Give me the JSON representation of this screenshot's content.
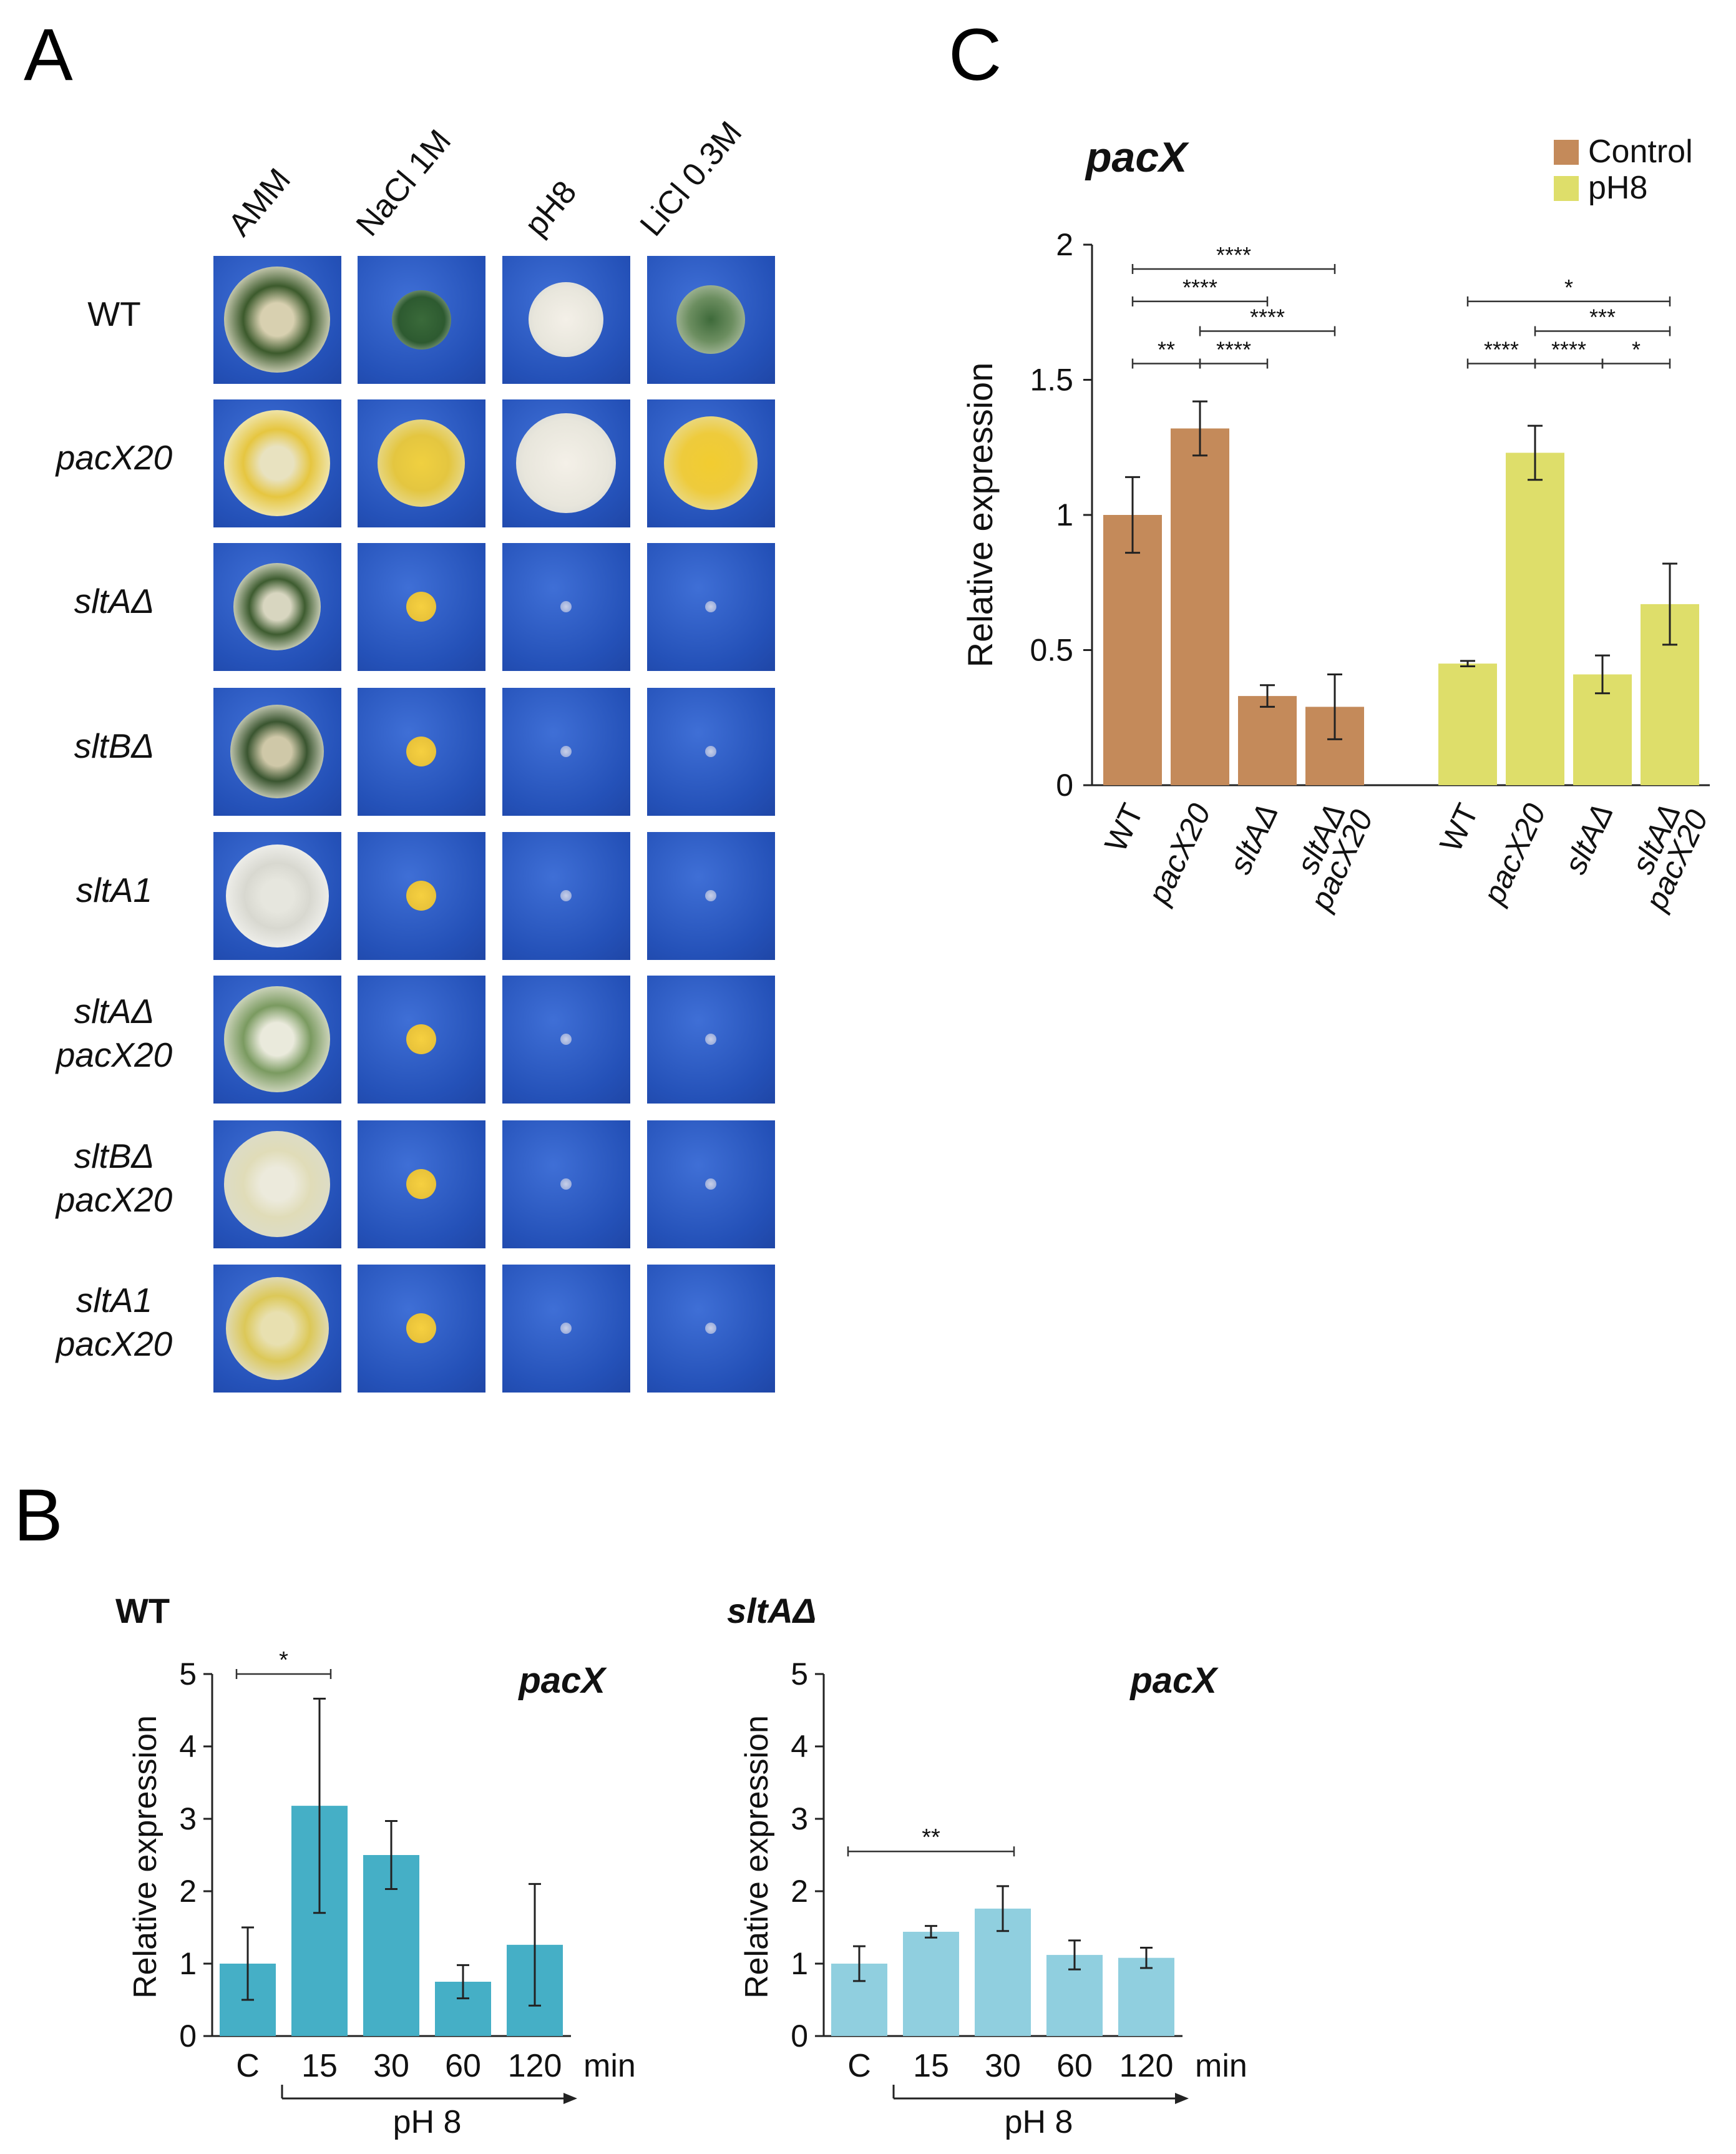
{
  "panels": {
    "a": "A",
    "b": "B",
    "c": "C"
  },
  "plates": {
    "columns": [
      "AMM",
      "NaCl 1M",
      "pH8",
      "LiCl 0.3M"
    ],
    "rows": [
      {
        "line1": "WT",
        "line2": "",
        "italic": false
      },
      {
        "line1": "pacX20",
        "line2": "",
        "italic": true
      },
      {
        "line1": "sltAΔ",
        "line2": "",
        "italic": true
      },
      {
        "line1": "sltBΔ",
        "line2": "",
        "italic": true
      },
      {
        "line1": "sltA1",
        "line2": "",
        "italic": true
      },
      {
        "line1": "sltAΔ",
        "line2": "pacX20",
        "italic": true
      },
      {
        "line1": "sltBΔ",
        "line2": "pacX20",
        "italic": true
      },
      {
        "line1": "sltA1",
        "line2": "pacX20",
        "italic": true
      }
    ]
  },
  "chart_data": [
    {
      "id": "C",
      "type": "bar",
      "title": "pacX",
      "ylabel": "Relative expression",
      "ylim": [
        0,
        2
      ],
      "yticks": [
        "0",
        "0.5",
        "1",
        "1.5",
        "2"
      ],
      "legend": [
        {
          "name": "Control",
          "color": "#c48a5a"
        },
        {
          "name": "pH8",
          "color": "#dede6a"
        }
      ],
      "groups": [
        {
          "name": "Control",
          "color": "#c48a5a",
          "categories": [
            [
              "WT"
            ],
            [
              "pacX20"
            ],
            [
              "sltAΔ"
            ],
            [
              "sltAΔ",
              "pacX20"
            ]
          ],
          "values": [
            1.0,
            1.32,
            0.33,
            0.29
          ],
          "errors": [
            0.14,
            0.1,
            0.04,
            0.12
          ]
        },
        {
          "name": "pH8",
          "color": "#dede6a",
          "categories": [
            [
              "WT"
            ],
            [
              "pacX20"
            ],
            [
              "sltAΔ"
            ],
            [
              "sltAΔ",
              "pacX20"
            ]
          ],
          "values": [
            0.45,
            1.23,
            0.41,
            0.67
          ],
          "errors": [
            0.01,
            0.1,
            0.07,
            0.15
          ]
        }
      ],
      "significance": [
        {
          "group": 0,
          "from": 0,
          "to": 3,
          "label": "****",
          "y": 1.91
        },
        {
          "group": 0,
          "from": 0,
          "to": 2,
          "label": "****",
          "y": 1.79
        },
        {
          "group": 0,
          "from": 1,
          "to": 3,
          "label": "****",
          "y": 1.68
        },
        {
          "group": 0,
          "from": 0,
          "to": 1,
          "label": "**",
          "y": 1.56
        },
        {
          "group": 0,
          "from": 1,
          "to": 2,
          "label": "****",
          "y": 1.56
        },
        {
          "group": 1,
          "from": 0,
          "to": 3,
          "label": "*",
          "y": 1.79
        },
        {
          "group": 1,
          "from": 1,
          "to": 3,
          "label": "***",
          "y": 1.68
        },
        {
          "group": 1,
          "from": 0,
          "to": 1,
          "label": "****",
          "y": 1.56
        },
        {
          "group": 1,
          "from": 1,
          "to": 2,
          "label": "****",
          "y": 1.56
        },
        {
          "group": 1,
          "from": 2,
          "to": 3,
          "label": "*",
          "y": 1.56
        }
      ]
    },
    {
      "id": "B-WT",
      "type": "bar",
      "title": "WT",
      "gene": "pacX",
      "ylabel": "Relative expression",
      "ylim": [
        0,
        5
      ],
      "yticks": [
        "0",
        "1",
        "2",
        "3",
        "4",
        "5"
      ],
      "categories": [
        "C",
        "15",
        "30",
        "60",
        "120"
      ],
      "unit": "min",
      "bracket_label": "pH 8",
      "color": "#45afc6",
      "values": [
        1.0,
        3.18,
        2.5,
        0.75,
        1.26
      ],
      "errors": [
        0.5,
        1.48,
        0.47,
        0.23,
        0.84
      ],
      "significance": [
        {
          "from": 0,
          "to": 1,
          "label": "*",
          "y": 5.0
        }
      ]
    },
    {
      "id": "B-sltA",
      "type": "bar",
      "title": "sltAΔ",
      "gene": "pacX",
      "ylabel": "Relative expression",
      "ylim": [
        0,
        5
      ],
      "yticks": [
        "0",
        "1",
        "2",
        "3",
        "4",
        "5"
      ],
      "categories": [
        "C",
        "15",
        "30",
        "60",
        "120"
      ],
      "unit": "min",
      "bracket_label": "pH 8",
      "color": "#90cfdf",
      "values": [
        1.0,
        1.44,
        1.76,
        1.12,
        1.08
      ],
      "errors": [
        0.24,
        0.08,
        0.31,
        0.2,
        0.14
      ],
      "significance": [
        {
          "from": 0,
          "to": 2,
          "label": "**",
          "y": 2.55
        }
      ]
    }
  ]
}
